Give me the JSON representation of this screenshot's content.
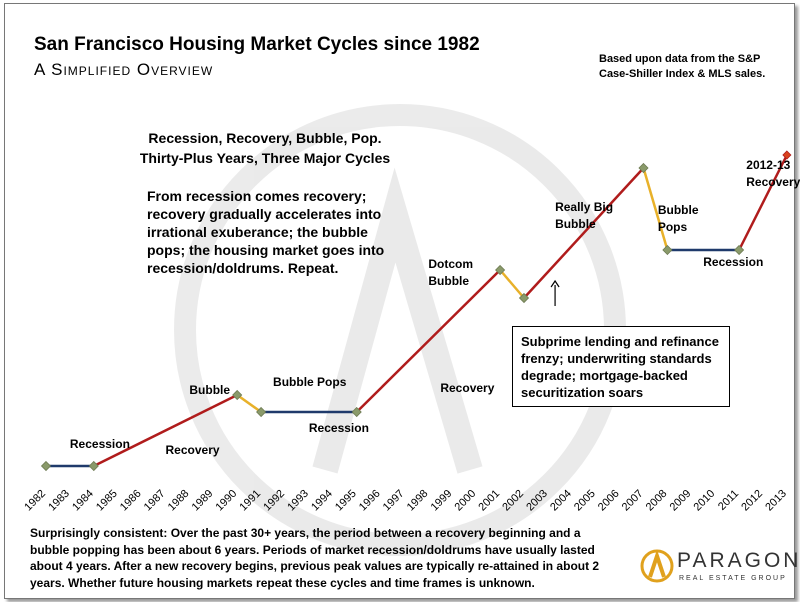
{
  "header": {
    "title": "San Francisco Housing Market Cycles since 1982",
    "subtitle": "A Simplified Overview",
    "source_line1": "Based upon data from the S&P",
    "source_line2": "Case-Shiller Index & MLS sales."
  },
  "headline": {
    "line1": "Recession, Recovery, Bubble, Pop.",
    "line2": "Thirty-Plus Years, Three Major Cycles"
  },
  "intro": "From recession comes recovery; recovery gradually accelerates into irrational exuberance; the bubble pops; the housing market goes into recession/doldrums. Repeat.",
  "callout": "Subprime lending and refinance frenzy; underwriting standards degrade; mortgage-backed securitization soars",
  "footer": "Surprisingly consistent: Over the past 30+ years, the period between a recovery beginning and a bubble popping has been about 6 years. Periods of market recession/doldrums have usually lasted about 4 years. After a new recovery begins, previous peak values are typically re-attained in about 2 years. Whether future housing markets repeat these cycles and time frames is unknown.",
  "logo": {
    "name": "PARAGON",
    "tagline": "REAL ESTATE GROUP"
  },
  "chart_data": {
    "type": "line",
    "title": "San Francisco Housing Market Cycles since 1982",
    "xlabel": "",
    "ylabel": "",
    "categories": [
      "1982",
      "1983",
      "1984",
      "1985",
      "1986",
      "1987",
      "1988",
      "1989",
      "1990",
      "1991",
      "1992",
      "1993",
      "1994",
      "1995",
      "1996",
      "1997",
      "1998",
      "1999",
      "2000",
      "2001",
      "2002",
      "2003",
      "2004",
      "2005",
      "2006",
      "2007",
      "2008",
      "2009",
      "2010",
      "2011",
      "2012",
      "2013"
    ],
    "x_range": [
      1982,
      2013
    ],
    "grid": false,
    "legend": "none",
    "segments": [
      {
        "phase": "recession",
        "x": [
          1982,
          1984
        ],
        "y": [
          0,
          0
        ],
        "color": "#1f3a6b"
      },
      {
        "phase": "recovery",
        "x": [
          1984,
          1990
        ],
        "y": [
          0,
          71
        ],
        "color": "#b01c1c"
      },
      {
        "phase": "pop",
        "x": [
          1990,
          1991
        ],
        "y": [
          71,
          54
        ],
        "color": "#e8b12a"
      },
      {
        "phase": "recession",
        "x": [
          1991,
          1995
        ],
        "y": [
          54,
          54
        ],
        "color": "#1f3a6b"
      },
      {
        "phase": "recovery",
        "x": [
          1995,
          2001
        ],
        "y": [
          54,
          196
        ],
        "color": "#b01c1c"
      },
      {
        "phase": "pop",
        "x": [
          2001,
          2002
        ],
        "y": [
          196,
          168
        ],
        "color": "#e8b12a"
      },
      {
        "phase": "recovery",
        "x": [
          2002,
          2007
        ],
        "y": [
          168,
          298
        ],
        "color": "#b01c1c"
      },
      {
        "phase": "pop",
        "x": [
          2007,
          2008
        ],
        "y": [
          298,
          216
        ],
        "color": "#e8b12a"
      },
      {
        "phase": "recession",
        "x": [
          2008,
          2011
        ],
        "y": [
          216,
          216
        ],
        "color": "#1f3a6b"
      },
      {
        "phase": "recovery",
        "x": [
          2011,
          2013
        ],
        "y": [
          216,
          311
        ],
        "color": "#b01c1c"
      }
    ],
    "markers": [
      {
        "x": 1982,
        "y": 0
      },
      {
        "x": 1984,
        "y": 0
      },
      {
        "x": 1990,
        "y": 71
      },
      {
        "x": 1991,
        "y": 54
      },
      {
        "x": 1995,
        "y": 54
      },
      {
        "x": 2001,
        "y": 196
      },
      {
        "x": 2002,
        "y": 168
      },
      {
        "x": 2007,
        "y": 298
      },
      {
        "x": 2008,
        "y": 216
      },
      {
        "x": 2011,
        "y": 216
      }
    ],
    "end_marker": {
      "x": 2013,
      "y": 311
    },
    "annotations": [
      {
        "text": [
          "Recession"
        ],
        "x": 1983.0,
        "y": 18
      },
      {
        "text": [
          "Recovery"
        ],
        "x": 1987.0,
        "y": 12
      },
      {
        "text": [
          "Bubble"
        ],
        "x": 1988.0,
        "y": 72
      },
      {
        "text": [
          "Bubble Pops"
        ],
        "x": 1991.5,
        "y": 80
      },
      {
        "text": [
          "Recession"
        ],
        "x": 1993.0,
        "y": 34
      },
      {
        "text": [
          "Recovery"
        ],
        "x": 1998.5,
        "y": 74
      },
      {
        "text": [
          "Dotcom",
          "Bubble"
        ],
        "x": 1998.0,
        "y": 198
      },
      {
        "text": [
          "Really Big",
          "Bubble"
        ],
        "x": 2003.3,
        "y": 255
      },
      {
        "text": [
          "Bubble",
          "Pops"
        ],
        "x": 2007.6,
        "y": 252
      },
      {
        "text": [
          "Recession"
        ],
        "x": 2009.5,
        "y": 200
      },
      {
        "text": [
          "2012-13",
          "Recovery"
        ],
        "x": 2011.3,
        "y": 297
      }
    ],
    "arrow": {
      "x": 2003.3,
      "y_from": 160,
      "y_to": 185
    }
  }
}
